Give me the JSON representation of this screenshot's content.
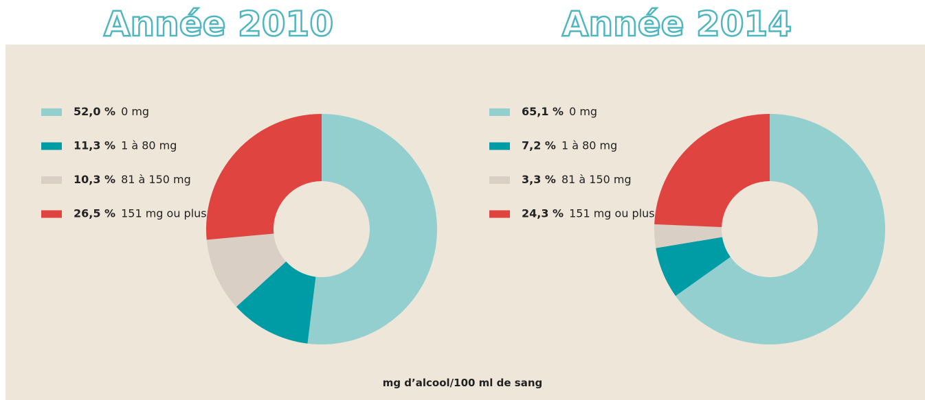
{
  "chart_data": [
    {
      "type": "pie",
      "title": "Année 2010",
      "categories": [
        "0 mg",
        "1 à 80 mg",
        "81 à 150 mg",
        "151 mg ou plus"
      ],
      "values": [
        52.0,
        11.3,
        10.3,
        26.5
      ],
      "value_labels": [
        "52,0 %",
        "11,3 %",
        "10,3 %",
        "26,5 %"
      ],
      "colors": [
        "#93cfcf",
        "#009ca6",
        "#d9cfc4",
        "#df4440"
      ]
    },
    {
      "type": "pie",
      "title": "Année 2014",
      "categories": [
        "0 mg",
        "1 à 80 mg",
        "81 à 150 mg",
        "151 mg ou plus"
      ],
      "values": [
        65.1,
        7.2,
        3.3,
        24.3
      ],
      "value_labels": [
        "65,1 %",
        "7,2 %",
        "3,3 %",
        "24,3 %"
      ],
      "colors": [
        "#93cfcf",
        "#009ca6",
        "#d9cfc4",
        "#df4440"
      ]
    }
  ],
  "caption": "mg d’alcool/100 ml de sang"
}
